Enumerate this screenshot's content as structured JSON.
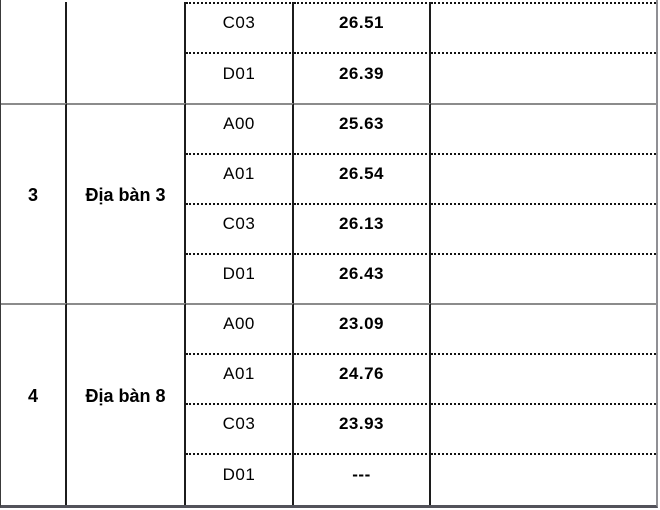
{
  "table": {
    "description_columns": [
      "stt",
      "dia-ban",
      "to-hop-ma",
      "diem",
      "ghi-chu"
    ],
    "partial_group": {
      "rows": [
        {
          "code": "C03",
          "score": "26.51"
        },
        {
          "code": "D01",
          "score": "26.39"
        }
      ]
    },
    "groups": [
      {
        "number": "3",
        "name": "Địa bàn 3",
        "rows": [
          {
            "code": "A00",
            "score": "25.63"
          },
          {
            "code": "A01",
            "score": "26.54"
          },
          {
            "code": "C03",
            "score": "26.13"
          },
          {
            "code": "D01",
            "score": "26.43"
          }
        ]
      },
      {
        "number": "4",
        "name": "Địa bàn 8",
        "rows": [
          {
            "code": "A00",
            "score": "23.09"
          },
          {
            "code": "A01",
            "score": "24.76"
          },
          {
            "code": "C03",
            "score": "23.93"
          },
          {
            "code": "D01",
            "score": "---"
          }
        ]
      }
    ],
    "colors": {
      "text": "#000000",
      "column_line": "#1c1c1c",
      "dotted_row_line": "#121212",
      "group_separator_line": "#8b8b8b",
      "outer_right_border": "#8f8f94",
      "outer_bottom_border": "#52525a",
      "background": "#ffffff"
    }
  }
}
